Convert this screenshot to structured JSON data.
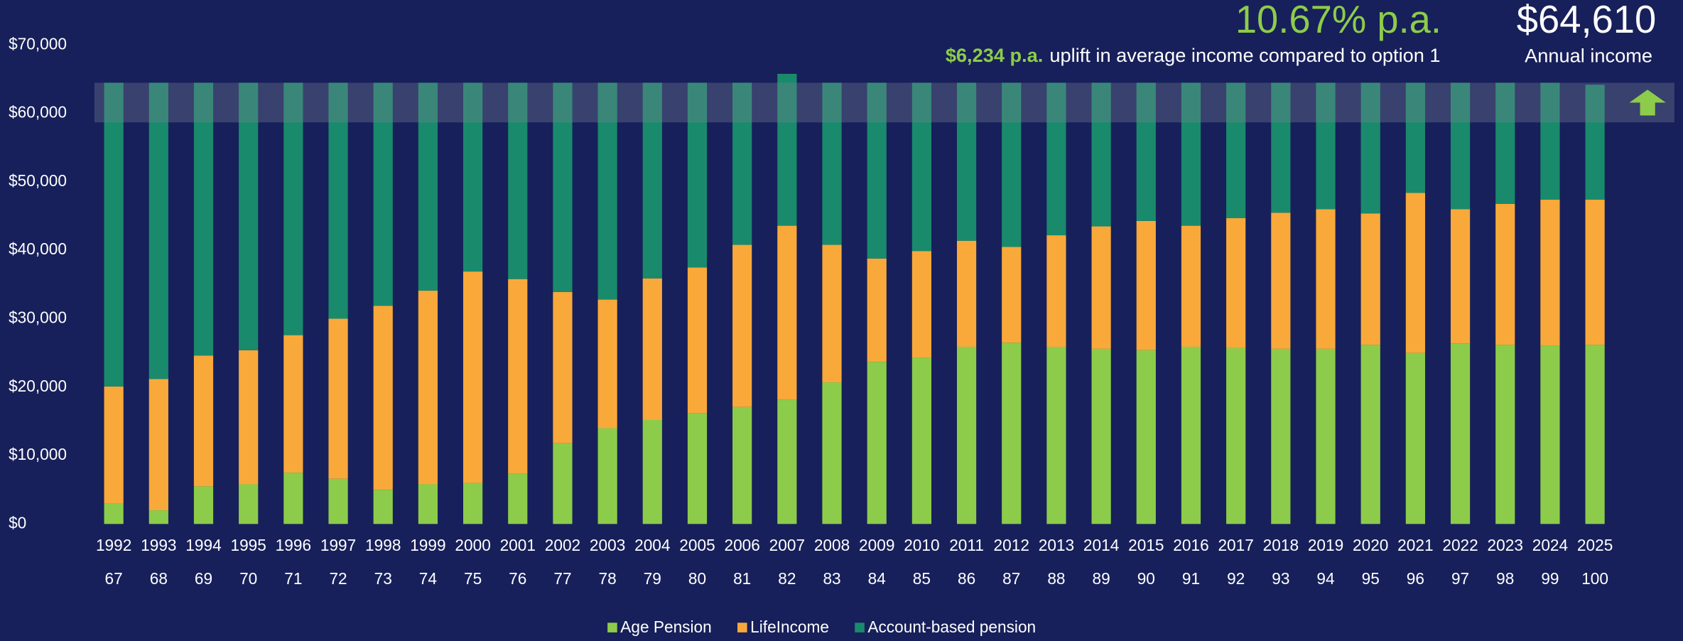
{
  "chart_data": {
    "type": "stacked_bar",
    "headline_rate": "10.67% p.a.",
    "headline_amount": "$64,610",
    "uplift_amount": "$6,234 p.a.",
    "uplift_text": "uplift in average income compared to option 1",
    "amount_caption": "Annual income",
    "categories": [
      "1992",
      "1993",
      "1994",
      "1995",
      "1996",
      "1997",
      "1998",
      "1999",
      "2000",
      "2001",
      "2002",
      "2003",
      "2004",
      "2005",
      "2006",
      "2007",
      "2008",
      "2009",
      "2010",
      "2011",
      "2012",
      "2013",
      "2014",
      "2015",
      "2016",
      "2017",
      "2018",
      "2019",
      "2020",
      "2021",
      "2022",
      "2023",
      "2024",
      "2025"
    ],
    "secondary_categories": [
      "67",
      "68",
      "69",
      "70",
      "71",
      "72",
      "73",
      "74",
      "75",
      "76",
      "77",
      "78",
      "79",
      "80",
      "81",
      "82",
      "83",
      "84",
      "85",
      "86",
      "87",
      "88",
      "89",
      "90",
      "91",
      "92",
      "93",
      "94",
      "95",
      "96",
      "97",
      "98",
      "99",
      "100"
    ],
    "series": [
      {
        "name": "Age Pension",
        "color": "#8dcc4a",
        "values": [
          3000,
          2000,
          5500,
          5800,
          7500,
          6600,
          5000,
          5800,
          6000,
          7400,
          11800,
          14000,
          15200,
          16200,
          17100,
          18200,
          20700,
          23700,
          24300,
          25900,
          26500,
          25900,
          25600,
          25400,
          25900,
          25700,
          25600,
          25600,
          26200,
          25000,
          26400,
          26200,
          26100,
          26200
        ]
      },
      {
        "name": "LifeIncome",
        "color": "#f8a93a",
        "values": [
          17100,
          19200,
          19100,
          19600,
          20100,
          23400,
          26900,
          28300,
          30900,
          28400,
          22100,
          18800,
          20700,
          21300,
          23700,
          25400,
          20100,
          15100,
          15600,
          15500,
          14000,
          16300,
          17900,
          18900,
          17700,
          19000,
          19900,
          20400,
          19200,
          23400,
          19600,
          20600,
          21300,
          21200
        ]
      },
      {
        "name": "Account-based pension",
        "color": "#1a8a6c",
        "values": [
          44400,
          43300,
          39900,
          39100,
          36900,
          34500,
          32600,
          30400,
          27600,
          28700,
          30600,
          31700,
          28600,
          27000,
          23700,
          22200,
          23700,
          25700,
          24600,
          23100,
          24000,
          22300,
          21000,
          20200,
          20900,
          19800,
          19000,
          18500,
          19100,
          16100,
          18500,
          17700,
          17100,
          16800
        ]
      }
    ],
    "highlight_band": [
      58700,
      64500
    ],
    "ylim": [
      0,
      70000
    ],
    "yticks": [
      {
        "value": 0,
        "label": "$0"
      },
      {
        "value": 10000,
        "label": "$10,000"
      },
      {
        "value": 20000,
        "label": "$20,000"
      },
      {
        "value": 30000,
        "label": "$30,000"
      },
      {
        "value": 40000,
        "label": "$40,000"
      },
      {
        "value": 50000,
        "label": "$50,000"
      },
      {
        "value": 60000,
        "label": "$60,000"
      },
      {
        "value": 70000,
        "label": "$70,000"
      }
    ],
    "grid": false,
    "legend": "bottom"
  }
}
